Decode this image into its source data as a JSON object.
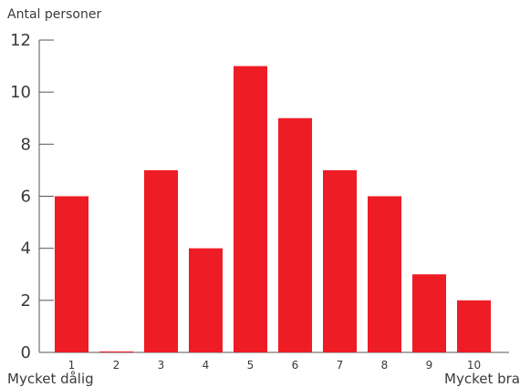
{
  "chart_data": {
    "type": "bar",
    "ylabel": "Antal personer",
    "categories": [
      "1",
      "2",
      "3",
      "4",
      "5",
      "6",
      "7",
      "8",
      "9",
      "10"
    ],
    "values": [
      6,
      0,
      7,
      4,
      11,
      9,
      7,
      6,
      3,
      2
    ],
    "yticks": [
      0,
      2,
      4,
      6,
      8,
      10,
      12
    ],
    "ylim": [
      0,
      12
    ],
    "x_low_label": "Mycket dålig",
    "x_high_label": "Mycket bra",
    "bar_color": "#ee1c25",
    "grid": false
  }
}
